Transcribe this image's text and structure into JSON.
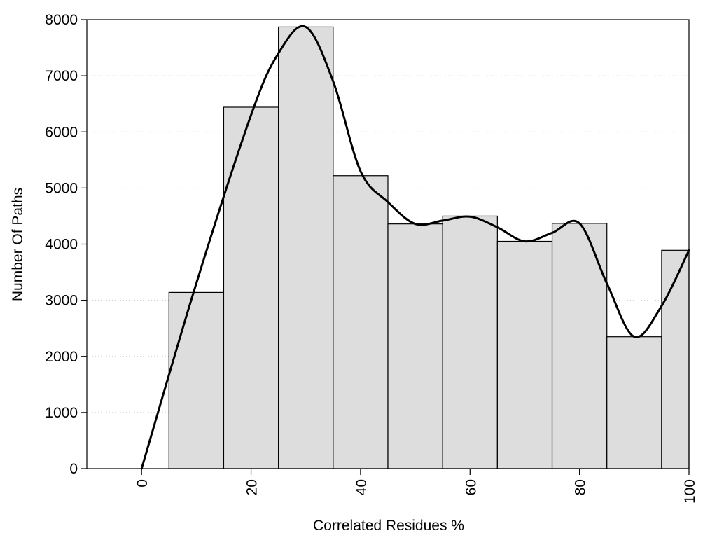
{
  "chart_data": {
    "type": "bar",
    "title": "",
    "xlabel": "Correlated Residues %",
    "ylabel": "Number Of Paths",
    "xlim": [
      -10,
      100
    ],
    "ylim": [
      0,
      8000
    ],
    "x_ticks": [
      0,
      20,
      40,
      60,
      80,
      100
    ],
    "y_ticks": [
      0,
      1000,
      2000,
      3000,
      4000,
      5000,
      6000,
      7000,
      8000
    ],
    "grid": true,
    "bar_color": "#dddddd",
    "bars": [
      {
        "x": 10,
        "width": 10,
        "value": 3140
      },
      {
        "x": 20,
        "width": 10,
        "value": 6440
      },
      {
        "x": 30,
        "width": 10,
        "value": 7870
      },
      {
        "x": 40,
        "width": 10,
        "value": 5220
      },
      {
        "x": 50,
        "width": 10,
        "value": 4360
      },
      {
        "x": 60,
        "width": 10,
        "value": 4500
      },
      {
        "x": 70,
        "width": 10,
        "value": 4050
      },
      {
        "x": 80,
        "width": 10,
        "value": 4370
      },
      {
        "x": 90,
        "width": 10,
        "value": 2350
      },
      {
        "x": 100,
        "width": 10,
        "value": 3890
      }
    ],
    "series": [
      {
        "type": "line",
        "color": "#000000",
        "x": [
          0,
          10,
          20,
          25,
          30,
          35,
          40,
          45,
          50,
          55,
          60,
          65,
          70,
          75,
          80,
          85,
          90,
          95,
          100
        ],
        "y": [
          0,
          3300,
          6300,
          7400,
          7870,
          6900,
          5300,
          4750,
          4360,
          4420,
          4490,
          4300,
          4050,
          4200,
          4370,
          3300,
          2350,
          2900,
          3890
        ]
      }
    ]
  }
}
